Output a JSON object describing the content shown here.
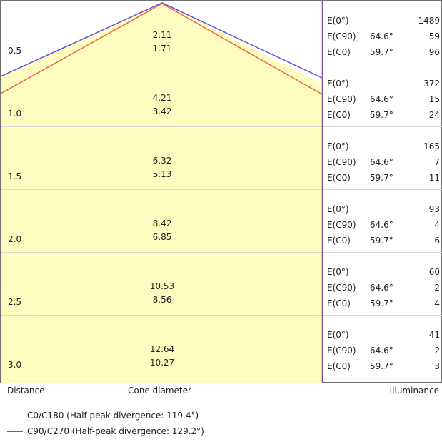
{
  "colors": {
    "c0": "#f0604a",
    "c90": "#5b55e0",
    "fill": "#fffcc0",
    "grid": "#d8d8d8"
  },
  "rows": [
    {
      "distance": "0.5",
      "d1": "2.11",
      "d2": "1.71",
      "e": [
        {
          "label": "E(0°)",
          "angle": "",
          "value": "1489"
        },
        {
          "label": "E(C90)",
          "angle": "64.6°",
          "value": "59"
        },
        {
          "label": "E(C0)",
          "angle": "59.7°",
          "value": "96"
        }
      ]
    },
    {
      "distance": "1.0",
      "d1": "4.21",
      "d2": "3.42",
      "e": [
        {
          "label": "E(0°)",
          "angle": "",
          "value": "372"
        },
        {
          "label": "E(C90)",
          "angle": "64.6°",
          "value": "15"
        },
        {
          "label": "E(C0)",
          "angle": "59.7°",
          "value": "24"
        }
      ]
    },
    {
      "distance": "1.5",
      "d1": "6.32",
      "d2": "5.13",
      "e": [
        {
          "label": "E(0°)",
          "angle": "",
          "value": "165"
        },
        {
          "label": "E(C90)",
          "angle": "64.6°",
          "value": "7"
        },
        {
          "label": "E(C0)",
          "angle": "59.7°",
          "value": "11"
        }
      ]
    },
    {
      "distance": "2.0",
      "d1": "8.42",
      "d2": "6.85",
      "e": [
        {
          "label": "E(0°)",
          "angle": "",
          "value": "93"
        },
        {
          "label": "E(C90)",
          "angle": "64.6°",
          "value": "4"
        },
        {
          "label": "E(C0)",
          "angle": "59.7°",
          "value": "6"
        }
      ]
    },
    {
      "distance": "2.5",
      "d1": "10.53",
      "d2": "8.56",
      "e": [
        {
          "label": "E(0°)",
          "angle": "",
          "value": "60"
        },
        {
          "label": "E(C90)",
          "angle": "64.6°",
          "value": "2"
        },
        {
          "label": "E(C0)",
          "angle": "59.7°",
          "value": "4"
        }
      ]
    },
    {
      "distance": "3.0",
      "d1": "12.64",
      "d2": "10.27",
      "e": [
        {
          "label": "E(0°)",
          "angle": "",
          "value": "41"
        },
        {
          "label": "E(C90)",
          "angle": "64.6°",
          "value": "2"
        },
        {
          "label": "E(C0)",
          "angle": "59.7°",
          "value": "3"
        }
      ]
    }
  ],
  "footer": {
    "distance": "Distance",
    "cone": "Cone diameter",
    "illuminance": "Illuminance"
  },
  "legend": [
    {
      "label": "C0/C180 (Half-peak divergence: 119.4°)",
      "color": "#f0604a"
    },
    {
      "label": "C90/C270 (Half-peak divergence: 129.2°)",
      "color": "#5b55e0"
    }
  ]
}
